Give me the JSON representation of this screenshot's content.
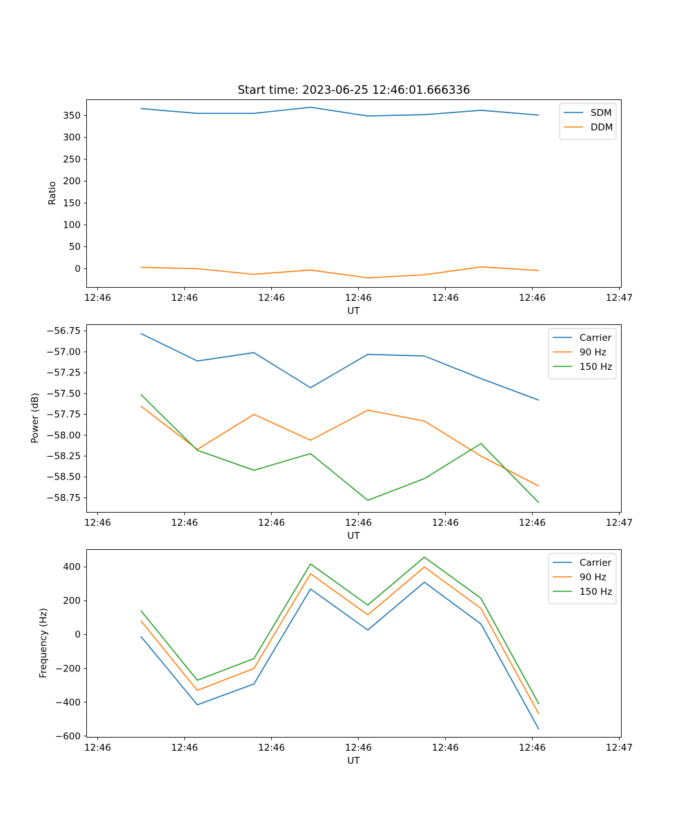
{
  "figure": {
    "title": "Start time: 2023-06-25 12:46:01.666336"
  },
  "chart_data": [
    {
      "type": "line",
      "xlabel": "UT",
      "ylabel": "Ratio",
      "x_tick_labels": [
        "12:46",
        "12:46",
        "12:46",
        "12:46",
        "12:46",
        "12:46",
        "12:46"
      ],
      "x_tick_final_label": "12:47",
      "y_ticks": [
        0,
        50,
        100,
        150,
        200,
        250,
        300,
        350
      ],
      "y_tick_labels": [
        "0",
        "50",
        "100",
        "150",
        "200",
        "250",
        "300",
        "350"
      ],
      "ylim": [
        -42,
        387
      ],
      "legend": "top-right",
      "series": [
        {
          "name": "SDM",
          "color": "#1f77b4",
          "values": [
            366,
            355,
            355,
            369,
            349,
            352,
            362,
            351
          ]
        },
        {
          "name": "DDM",
          "color": "#ff7f0e",
          "values": [
            3,
            0,
            -13,
            -3,
            -21,
            -14,
            4,
            -4
          ]
        }
      ]
    },
    {
      "type": "line",
      "xlabel": "UT",
      "ylabel": "Power (dB)",
      "x_tick_labels": [
        "12:46",
        "12:46",
        "12:46",
        "12:46",
        "12:46",
        "12:46",
        "12:46"
      ],
      "x_tick_final_label": "12:47",
      "y_ticks": [
        -58.75,
        -58.5,
        -58.25,
        -58.0,
        -57.75,
        -57.5,
        -57.25,
        -57.0,
        -56.75
      ],
      "y_tick_labels": [
        "−58.75",
        "−58.50",
        "−58.25",
        "−58.00",
        "−57.75",
        "−57.50",
        "−57.25",
        "−57.00",
        "−56.75"
      ],
      "ylim": [
        -58.92,
        -56.67
      ],
      "legend": "top-right",
      "series": [
        {
          "name": "Carrier",
          "color": "#1f77b4",
          "values": [
            -56.78,
            -57.11,
            -57.01,
            -57.43,
            -57.03,
            -57.05,
            -57.32,
            -57.58
          ]
        },
        {
          "name": "90 Hz",
          "color": "#ff7f0e",
          "values": [
            -57.65,
            -58.17,
            -57.75,
            -58.06,
            -57.7,
            -57.83,
            -58.25,
            -58.61
          ]
        },
        {
          "name": "150 Hz",
          "color": "#2ca02c",
          "values": [
            -57.51,
            -58.18,
            -58.42,
            -58.22,
            -58.78,
            -58.52,
            -58.1,
            -58.81
          ]
        }
      ]
    },
    {
      "type": "line",
      "xlabel": "UT",
      "ylabel": "Frequency (Hz)",
      "x_tick_labels": [
        "12:46",
        "12:46",
        "12:46",
        "12:46",
        "12:46",
        "12:46",
        "12:46"
      ],
      "x_tick_final_label": "12:47",
      "y_ticks": [
        -600,
        -400,
        -200,
        0,
        200,
        400
      ],
      "y_tick_labels": [
        "−600",
        "−400",
        "−200",
        "0",
        "200",
        "400"
      ],
      "ylim": [
        -605,
        505
      ],
      "legend": "top-right",
      "series": [
        {
          "name": "Carrier",
          "color": "#1f77b4",
          "values": [
            -10,
            -415,
            -292,
            270,
            27,
            310,
            63,
            -560
          ]
        },
        {
          "name": "90 Hz",
          "color": "#ff7f0e",
          "values": [
            83,
            -330,
            -200,
            360,
            117,
            400,
            155,
            -470
          ]
        },
        {
          "name": "150 Hz",
          "color": "#2ca02c",
          "values": [
            143,
            -270,
            -142,
            418,
            175,
            458,
            215,
            -410
          ]
        }
      ]
    }
  ]
}
